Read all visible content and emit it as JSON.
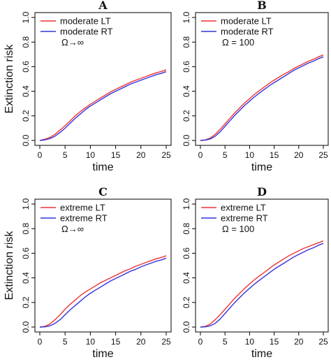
{
  "colors": {
    "lt": "#ee3333",
    "rt": "#3333dd"
  },
  "chart_data": [
    {
      "type": "line",
      "title": "A",
      "xlabel": "time",
      "ylabel": "Extinction risk",
      "xlim": [
        0,
        25
      ],
      "ylim": [
        0,
        1
      ],
      "xticks": [
        0,
        5,
        10,
        15,
        20,
        25
      ],
      "yticks": [
        0.0,
        0.2,
        0.4,
        0.6,
        0.8,
        1.0
      ],
      "legend_note": "Ω→∞",
      "series": [
        {
          "name": "moderate LT",
          "color": "#ee3333",
          "x": [
            0,
            1,
            2,
            3,
            4,
            5,
            6,
            7,
            8,
            9,
            10,
            11,
            12,
            13,
            14,
            15,
            16,
            17,
            18,
            19,
            20,
            21,
            22,
            23,
            24,
            25
          ],
          "y": [
            0.0,
            0.01,
            0.025,
            0.05,
            0.085,
            0.12,
            0.16,
            0.2,
            0.235,
            0.265,
            0.295,
            0.32,
            0.345,
            0.37,
            0.395,
            0.415,
            0.435,
            0.455,
            0.475,
            0.49,
            0.505,
            0.52,
            0.535,
            0.55,
            0.56,
            0.575
          ]
        },
        {
          "name": "moderate RT",
          "color": "#3333dd",
          "x": [
            0,
            1,
            2,
            3,
            4,
            5,
            6,
            7,
            8,
            9,
            10,
            11,
            12,
            13,
            14,
            15,
            16,
            17,
            18,
            19,
            20,
            21,
            22,
            23,
            24,
            25
          ],
          "y": [
            0.0,
            0.005,
            0.015,
            0.035,
            0.065,
            0.1,
            0.14,
            0.18,
            0.215,
            0.25,
            0.28,
            0.305,
            0.33,
            0.355,
            0.38,
            0.4,
            0.42,
            0.44,
            0.46,
            0.475,
            0.49,
            0.505,
            0.52,
            0.535,
            0.545,
            0.56
          ]
        }
      ]
    },
    {
      "type": "line",
      "title": "B",
      "xlabel": "time",
      "ylabel": "",
      "xlim": [
        0,
        25
      ],
      "ylim": [
        0,
        1
      ],
      "xticks": [
        0,
        5,
        10,
        15,
        20,
        25
      ],
      "yticks": [
        0.0,
        0.2,
        0.4,
        0.6,
        0.8,
        1.0
      ],
      "legend_note": "Ω = 100",
      "series": [
        {
          "name": "moderate LT",
          "color": "#ee3333",
          "x": [
            0,
            1,
            2,
            3,
            4,
            5,
            6,
            7,
            8,
            9,
            10,
            11,
            12,
            13,
            14,
            15,
            16,
            17,
            18,
            19,
            20,
            21,
            22,
            23,
            24,
            25
          ],
          "y": [
            0.0,
            0.005,
            0.02,
            0.05,
            0.09,
            0.135,
            0.18,
            0.225,
            0.265,
            0.305,
            0.34,
            0.375,
            0.405,
            0.435,
            0.465,
            0.49,
            0.515,
            0.54,
            0.56,
            0.585,
            0.605,
            0.625,
            0.645,
            0.66,
            0.68,
            0.695
          ]
        },
        {
          "name": "moderate RT",
          "color": "#3333dd",
          "x": [
            0,
            1,
            2,
            3,
            4,
            5,
            6,
            7,
            8,
            9,
            10,
            11,
            12,
            13,
            14,
            15,
            16,
            17,
            18,
            19,
            20,
            21,
            22,
            23,
            24,
            25
          ],
          "y": [
            0.0,
            0.003,
            0.012,
            0.035,
            0.07,
            0.115,
            0.16,
            0.205,
            0.245,
            0.285,
            0.32,
            0.355,
            0.385,
            0.415,
            0.445,
            0.47,
            0.495,
            0.52,
            0.545,
            0.57,
            0.59,
            0.61,
            0.63,
            0.645,
            0.665,
            0.68
          ]
        }
      ]
    },
    {
      "type": "line",
      "title": "C",
      "xlabel": "time",
      "ylabel": "Extinction risk",
      "xlim": [
        0,
        25
      ],
      "ylim": [
        0,
        1
      ],
      "xticks": [
        0,
        5,
        10,
        15,
        20,
        25
      ],
      "yticks": [
        0.0,
        0.2,
        0.4,
        0.6,
        0.8,
        1.0
      ],
      "legend_note": "Ω→∞",
      "series": [
        {
          "name": "extreme LT",
          "color": "#ee3333",
          "x": [
            0,
            1,
            2,
            3,
            4,
            5,
            6,
            7,
            8,
            9,
            10,
            11,
            12,
            13,
            14,
            15,
            16,
            17,
            18,
            19,
            20,
            21,
            22,
            23,
            24,
            25
          ],
          "y": [
            0.0,
            0.005,
            0.025,
            0.06,
            0.1,
            0.145,
            0.185,
            0.22,
            0.255,
            0.285,
            0.31,
            0.335,
            0.36,
            0.38,
            0.4,
            0.42,
            0.44,
            0.46,
            0.475,
            0.495,
            0.51,
            0.525,
            0.54,
            0.555,
            0.565,
            0.58
          ]
        },
        {
          "name": "extreme RT",
          "color": "#3333dd",
          "x": [
            0,
            1,
            2,
            3,
            4,
            5,
            6,
            7,
            8,
            9,
            10,
            11,
            12,
            13,
            14,
            15,
            16,
            17,
            18,
            19,
            20,
            21,
            22,
            23,
            24,
            25
          ],
          "y": [
            0.0,
            0.002,
            0.01,
            0.03,
            0.06,
            0.1,
            0.14,
            0.175,
            0.21,
            0.245,
            0.275,
            0.3,
            0.325,
            0.35,
            0.375,
            0.395,
            0.415,
            0.435,
            0.455,
            0.47,
            0.49,
            0.505,
            0.52,
            0.535,
            0.545,
            0.56
          ]
        }
      ]
    },
    {
      "type": "line",
      "title": "D",
      "xlabel": "time",
      "ylabel": "",
      "xlim": [
        0,
        25
      ],
      "ylim": [
        0,
        1
      ],
      "xticks": [
        0,
        5,
        10,
        15,
        20,
        25
      ],
      "yticks": [
        0.0,
        0.2,
        0.4,
        0.6,
        0.8,
        1.0
      ],
      "legend_note": "Ω = 100",
      "series": [
        {
          "name": "extreme LT",
          "color": "#ee3333",
          "x": [
            0,
            1,
            2,
            3,
            4,
            5,
            6,
            7,
            8,
            9,
            10,
            11,
            12,
            13,
            14,
            15,
            16,
            17,
            18,
            19,
            20,
            21,
            22,
            23,
            24,
            25
          ],
          "y": [
            0.0,
            0.005,
            0.025,
            0.06,
            0.1,
            0.145,
            0.19,
            0.235,
            0.275,
            0.315,
            0.35,
            0.385,
            0.415,
            0.445,
            0.475,
            0.505,
            0.53,
            0.555,
            0.58,
            0.6,
            0.62,
            0.64,
            0.655,
            0.67,
            0.685,
            0.7
          ]
        },
        {
          "name": "extreme RT",
          "color": "#3333dd",
          "x": [
            0,
            1,
            2,
            3,
            4,
            5,
            6,
            7,
            8,
            9,
            10,
            11,
            12,
            13,
            14,
            15,
            16,
            17,
            18,
            19,
            20,
            21,
            22,
            23,
            24,
            25
          ],
          "y": [
            0.0,
            0.002,
            0.01,
            0.03,
            0.065,
            0.11,
            0.155,
            0.2,
            0.24,
            0.28,
            0.315,
            0.35,
            0.38,
            0.41,
            0.44,
            0.47,
            0.495,
            0.52,
            0.545,
            0.57,
            0.59,
            0.61,
            0.63,
            0.645,
            0.665,
            0.68
          ]
        }
      ]
    }
  ]
}
